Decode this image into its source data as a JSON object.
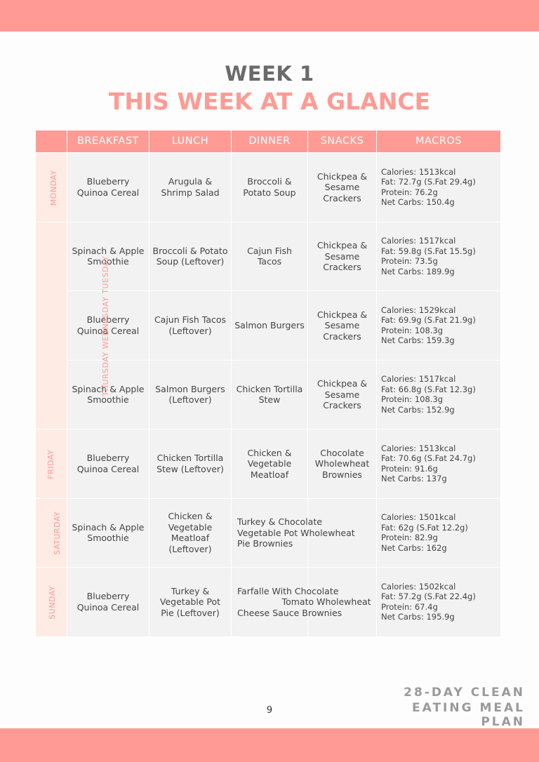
{
  "header": {
    "week": "WEEK 1",
    "title": "THIS WEEK AT A GLANCE"
  },
  "colors": {
    "accent": "#ff9b94",
    "cell": "#f2f2f2",
    "day_cell": "#fdebe4"
  },
  "columns": [
    "",
    "BREAKFAST",
    "LUNCH",
    "DINNER",
    "SNACKS",
    "MACROS"
  ],
  "rows": [
    {
      "day": "MONDAY",
      "breakfast": "Blueberry Quinoa Cereal",
      "lunch": "Arugula & Shrimp Salad",
      "dinner": "Broccoli & Potato Soup",
      "snacks": "Chickpea & Sesame Crackers",
      "macros": [
        "Calories: 1513kcal",
        "Fat: 72.7g (S.Fat 29.4g)",
        "Protein: 76.2g",
        "Net Carbs: 150.4g"
      ]
    },
    {
      "day": "THURSDAY WEDNESDAY TUESDAY",
      "breakfast": "Spinach & Apple Smoothie",
      "lunch": "Broccoli & Potato Soup (Leftover)",
      "dinner": "Cajun Fish Tacos",
      "snacks": "Chickpea & Sesame Crackers",
      "macros": [
        "Calories: 1517kcal",
        "Fat: 59.8g (S.Fat 15.5g)",
        "Protein: 73.5g",
        "Net Carbs: 189.9g"
      ]
    },
    {
      "breakfast": "Blueberry Quinoa Cereal",
      "lunch": "Cajun Fish Tacos (Leftover)",
      "dinner": "Salmon Burgers",
      "snacks": "Chickpea & Sesame Crackers",
      "macros": [
        "Calories: 1529kcal",
        "Fat: 69.9g (S.Fat 21.9g)",
        "Protein: 108.3g",
        "Net Carbs: 159.3g"
      ]
    },
    {
      "breakfast": "Spinach & Apple Smoothie",
      "lunch": "Salmon Burgers (Leftover)",
      "dinner": "Chicken Tortilla Stew",
      "snacks": "Chickpea & Sesame Crackers",
      "macros": [
        "Calories: 1517kcal",
        "Fat: 66.8g (S.Fat 12.3g)",
        "Protein: 108.3g",
        "Net Carbs: 152.9g"
      ]
    },
    {
      "day": "FRIDAY",
      "breakfast": "Blueberry Quinoa Cereal",
      "lunch": "Chicken Tortilla Stew (Leftover)",
      "dinner": "Chicken & Vegetable Meatloaf",
      "snacks": "Chocolate Wholewheat Brownies",
      "macros": [
        "Calories: 1513kcal",
        "Fat: 70.6g (S.Fat 24.7g)",
        "Protein: 91.6g",
        "Net Carbs: 137g"
      ]
    },
    {
      "day": "SATURDAY",
      "breakfast": "Spinach & Apple Smoothie",
      "lunch": "Chicken & Vegetable Meatloaf (Leftover)",
      "dinner_snacks": "Turkey & Chocolate\nVegetable Pot Wholewheat\nPie Brownies",
      "macros": [
        "Calories: 1501kcal",
        "Fat:  62g  (S.Fat 12.2g)",
        "Protein: 82.9g",
        "Net Carbs: 162g"
      ]
    },
    {
      "day": "SUNDAY",
      "breakfast": "Blueberry Quinoa Cereal",
      "lunch": "Turkey & Vegetable Pot Pie (Leftover)",
      "dinner_snacks": "Farfalle With Chocolate\n                Tomato Wholewheat\nCheese Sauce Brownies",
      "macros": [
        "Calories: 1502kcal",
        "Fat: 57.2g (S.Fat 22.4g)",
        "Protein: 67.4g",
        "Net Carbs: 195.9g"
      ]
    }
  ],
  "footer": {
    "page": "9",
    "brand_line1": "28-DAY CLEAN",
    "brand_line2": "EATING MEAL PLAN"
  }
}
